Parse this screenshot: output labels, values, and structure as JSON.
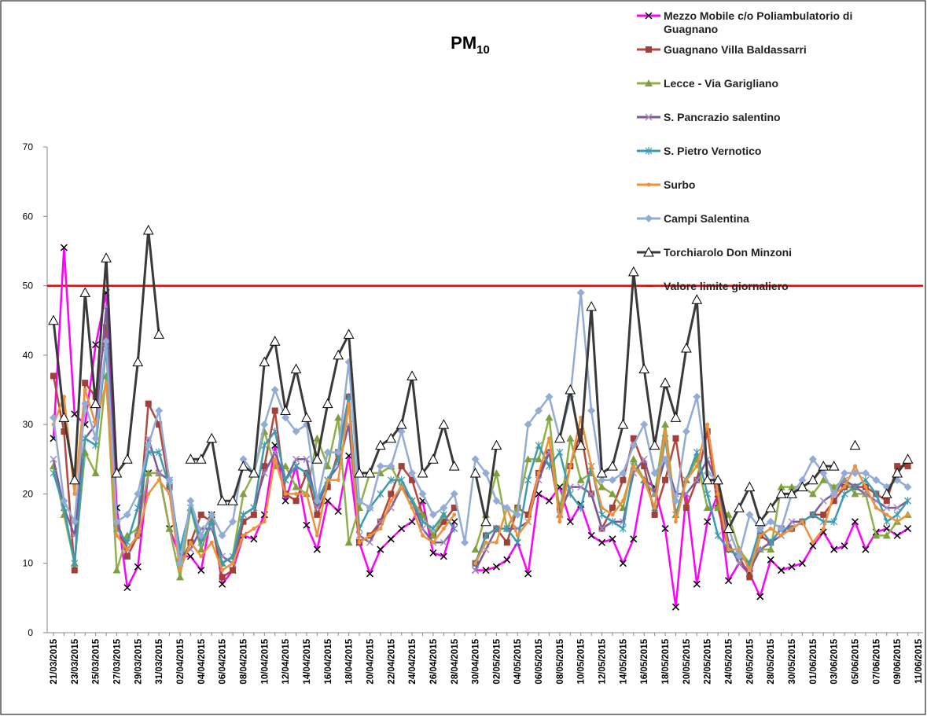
{
  "chart_data": {
    "type": "line",
    "title": {
      "main": "PM",
      "sub": "10"
    },
    "categories": [
      "21/03/2015",
      null,
      "23/03/2015",
      null,
      "25/03/2015",
      null,
      "27/03/2015",
      null,
      "29/03/2015",
      null,
      "31/03/2015",
      null,
      "02/04/2015",
      null,
      "04/04/2015",
      null,
      "06/04/2015",
      null,
      "08/04/2015",
      null,
      "10/04/2015",
      null,
      "12/04/2015",
      null,
      "14/04/2015",
      null,
      "16/04/2015",
      null,
      "18/04/2015",
      null,
      "20/04/2015",
      null,
      "22/04/2015",
      null,
      "24/04/2015",
      null,
      "26/04/2015",
      null,
      "28/04/2015",
      null,
      "30/04/2015",
      null,
      "02/05/2015",
      null,
      "04/05/2015",
      null,
      "06/05/2015",
      null,
      "08/05/2015",
      null,
      "10/05/2015",
      null,
      "12/05/2015",
      null,
      "14/05/2015",
      null,
      "16/05/2015",
      null,
      "18/05/2015",
      null,
      "20/05/2015",
      null,
      "22/05/2015",
      null,
      "24/05/2015",
      null,
      "26/05/2015",
      null,
      "28/05/2015",
      null,
      "30/05/2015",
      null,
      "01/06/2015",
      null,
      "03/06/2015",
      null,
      "05/06/2015",
      null,
      "07/06/2015",
      null,
      "09/06/2015",
      null,
      "11/06/2015"
    ],
    "ylim": [
      0,
      70
    ],
    "yticks": [
      0,
      10,
      20,
      30,
      40,
      50,
      60,
      70
    ],
    "grid": false,
    "series": [
      {
        "name": "Mezzo Mobile c/o Poliambulatorio di Guagnano",
        "color": "#ff00ff",
        "marker": "x",
        "marker_color": "#000000",
        "values": [
          28,
          55.5,
          31.5,
          30,
          41.5,
          49,
          18,
          6.5,
          9.5,
          23,
          23,
          15,
          11,
          11,
          9,
          17,
          7,
          9,
          14,
          13.5,
          17,
          27,
          19,
          24,
          15.5,
          12,
          19,
          17.5,
          25.5,
          13,
          8.5,
          12,
          13.5,
          15,
          16,
          19,
          11.5,
          11,
          16,
          null,
          9,
          9,
          9.5,
          10.5,
          13,
          8.5,
          20,
          19,
          21,
          16,
          18.5,
          14,
          13,
          13.5,
          10,
          13.5,
          22,
          21,
          15,
          3.7,
          20,
          7,
          16,
          20,
          7.5,
          10,
          8.5,
          5.2,
          10.5,
          9,
          9.5,
          10,
          12.5,
          14.5,
          12,
          12.5,
          16,
          12,
          14.5,
          15,
          14,
          15,
          null
        ]
      },
      {
        "name": "Guagnano Villa Baldassarri",
        "color": "#b5473f",
        "marker": "square",
        "marker_color": "#a0403a",
        "values": [
          37,
          29,
          9,
          36,
          34,
          44,
          16,
          11,
          14,
          33,
          30,
          21,
          10,
          13,
          17,
          16,
          8,
          9,
          16,
          17,
          24,
          32,
          20,
          19,
          23,
          17,
          21,
          26,
          34,
          13,
          14,
          16,
          20,
          24,
          22,
          17,
          14,
          16,
          18,
          null,
          10,
          14,
          15,
          13,
          18,
          17,
          23,
          26,
          18,
          24,
          29,
          20,
          15,
          18,
          22,
          28,
          24,
          17,
          22,
          28,
          18,
          22,
          29,
          18,
          12,
          11,
          8,
          14,
          13,
          15,
          15,
          16,
          17,
          17,
          19,
          21,
          21,
          21,
          20,
          19,
          24,
          24,
          null
        ]
      },
      {
        "name": "Lecce - Via Garigliano",
        "color": "#8fb04a",
        "marker": "triangle",
        "marker_color": "#7f9f3f",
        "values": [
          24,
          17,
          10,
          26,
          23,
          37,
          9,
          14,
          15,
          23,
          23,
          15,
          8,
          18,
          12,
          16,
          10,
          11,
          20,
          23,
          29,
          24,
          24,
          21,
          20,
          28,
          24,
          31,
          13,
          18,
          23,
          23,
          24,
          21,
          19,
          17,
          14,
          17,
          null,
          null,
          12,
          17,
          23,
          15,
          18,
          25,
          25,
          31,
          17,
          28,
          22,
          23,
          21,
          20,
          18,
          25,
          22,
          20,
          30,
          17,
          22,
          25,
          18,
          18,
          17,
          12,
          10,
          12,
          12,
          21,
          21,
          21,
          20,
          22,
          21,
          22,
          20,
          20,
          14,
          14,
          16,
          17,
          null
        ]
      },
      {
        "name": "S. Pancrazio salentino",
        "color": "#7a5a9a",
        "marker": "x",
        "marker_color": "#a58cc4",
        "values": [
          25,
          18,
          14,
          28,
          30,
          47,
          16,
          12,
          14,
          28,
          23,
          22,
          11,
          12,
          15,
          15,
          11,
          10,
          17,
          18,
          23,
          26,
          22,
          25,
          25,
          18,
          22,
          24,
          30,
          14,
          13,
          16,
          18,
          21,
          19,
          15,
          13,
          13,
          15,
          null,
          9,
          12,
          15,
          15,
          15,
          16,
          22,
          26,
          17,
          21,
          21,
          20,
          15,
          16,
          16,
          23,
          25,
          20,
          25,
          20,
          20,
          22,
          25,
          21,
          13,
          10,
          9,
          12,
          13,
          14,
          16,
          16,
          17,
          19,
          20,
          22,
          21,
          20,
          19,
          18,
          18,
          19,
          null
        ]
      },
      {
        "name": "S. Pietro  Vernotico",
        "color": "#3c9bb0",
        "marker": "asterisk",
        "marker_color": "#3c9bb0",
        "values": [
          23,
          18,
          10,
          28,
          27,
          41,
          15,
          13,
          18,
          26,
          26,
          21,
          12,
          18,
          13,
          16,
          10,
          11,
          17,
          18,
          27,
          29,
          22,
          24,
          23,
          19,
          22,
          25,
          34,
          15,
          18,
          20,
          22,
          22,
          19,
          16,
          15,
          17,
          15,
          null,
          10,
          14,
          15,
          15,
          13,
          22,
          27,
          24,
          26,
          20,
          18,
          24,
          17,
          16,
          15,
          24,
          22,
          18,
          28,
          17,
          22,
          26,
          20,
          14,
          12,
          11,
          10,
          15,
          13,
          15,
          15,
          16,
          17,
          16,
          16,
          20,
          21,
          22,
          20,
          16,
          17,
          19,
          null
        ]
      },
      {
        "name": "Surbo",
        "color": "#f0913a",
        "marker": "circle",
        "marker_color": "#f0913a",
        "values": [
          30,
          34,
          20,
          35,
          30,
          36,
          14,
          12,
          14,
          20,
          22,
          20,
          9,
          13,
          11,
          13,
          9,
          10,
          14,
          15,
          16,
          25,
          20,
          20,
          20,
          14,
          22,
          22,
          33,
          13,
          14,
          15,
          19,
          21,
          18,
          14,
          13,
          15,
          17,
          null,
          10,
          13,
          13,
          18,
          14,
          16,
          23,
          28,
          16,
          24,
          31,
          24,
          18,
          17,
          19,
          24,
          22,
          18,
          29,
          16,
          22,
          24,
          30,
          20,
          12,
          12,
          9,
          14,
          15,
          14,
          15,
          16,
          13,
          15,
          20,
          21,
          24,
          21,
          18,
          17,
          16,
          17,
          null
        ]
      },
      {
        "name": "Campi Salentina",
        "color": "#93acd6",
        "marker": "diamond",
        "marker_color": "#93acd6",
        "values": [
          31,
          19,
          16,
          33,
          28,
          42,
          16,
          17,
          20,
          27,
          32,
          22,
          10,
          19,
          14,
          17,
          14,
          16,
          25,
          23,
          30,
          35,
          31,
          29,
          30,
          19,
          26,
          26,
          39,
          19,
          18,
          24,
          24,
          29,
          23,
          20,
          17,
          18,
          20,
          13,
          25,
          23,
          19,
          18,
          17,
          30,
          32,
          34,
          28,
          34,
          49,
          32,
          22,
          22,
          23,
          27,
          30,
          23,
          25,
          19,
          29,
          34,
          23,
          22,
          15,
          11,
          17,
          15,
          16,
          15,
          20,
          22,
          25,
          23,
          20,
          23,
          23,
          23,
          22,
          21,
          22,
          21,
          null
        ]
      },
      {
        "name": "Torchiarolo Don Minzoni",
        "color": "#3a3a3a",
        "marker": "open-triangle",
        "marker_color": "#000000",
        "values": [
          45,
          31,
          22,
          49,
          33,
          54,
          23,
          25,
          39,
          58,
          43,
          null,
          null,
          25,
          25,
          28,
          19,
          19,
          24,
          23,
          39,
          42,
          32,
          38,
          31,
          25,
          33,
          40,
          43,
          23,
          23,
          27,
          28,
          30,
          37,
          23,
          25,
          30,
          24,
          null,
          23,
          16,
          27,
          null,
          null,
          null,
          null,
          null,
          28,
          35,
          27,
          47,
          23,
          24,
          30,
          52,
          38,
          27,
          36,
          31,
          41,
          48,
          22,
          22,
          15,
          18,
          21,
          16,
          18,
          20,
          20,
          21,
          22,
          24,
          24,
          null,
          27,
          null,
          null,
          20,
          23,
          25,
          null
        ]
      }
    ],
    "reference_line": {
      "name": "Valore limite giornaliero",
      "value": 50,
      "color": "#e00000"
    }
  }
}
